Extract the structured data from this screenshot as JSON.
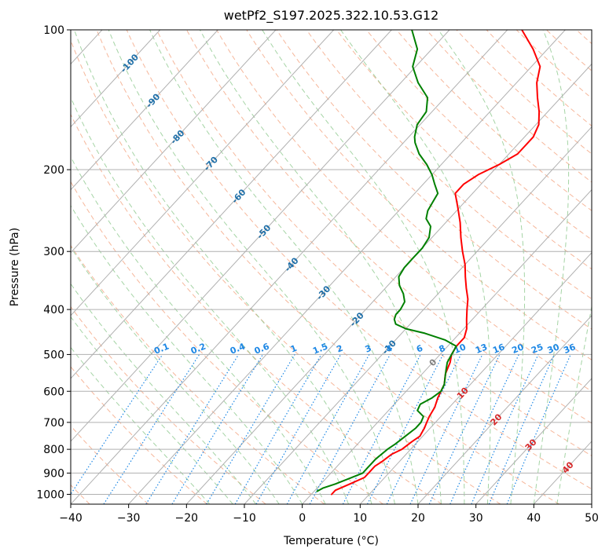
{
  "chart_data": {
    "type": "line",
    "title": "wetPf2_S197.2025.322.10.53.G12",
    "xlabel": "Temperature (°C)",
    "ylabel": "Pressure (hPa)",
    "xlim": [
      -40,
      50
    ],
    "ylim": [
      1050,
      100
    ],
    "y_scale": "log",
    "grid": true,
    "x_ticks": [
      "−40",
      "−30",
      "−20",
      "−10",
      "0",
      "10",
      "20",
      "30",
      "40",
      "50"
    ],
    "x_tick_values": [
      -40,
      -30,
      -20,
      -10,
      0,
      10,
      20,
      30,
      40,
      50
    ],
    "y_ticks": [
      "100",
      "200",
      "300",
      "400",
      "500",
      "600",
      "700",
      "800",
      "900",
      "1000"
    ],
    "y_tick_values": [
      100,
      200,
      300,
      400,
      500,
      600,
      700,
      800,
      900,
      1000
    ],
    "skew_x_per_y": 0.92,
    "series": [
      {
        "color": "#ff0000",
        "points": [
          [
            1000,
            3.5
          ],
          [
            980,
            3.5
          ],
          [
            950,
            5
          ],
          [
            920,
            6.5
          ],
          [
            900,
            6.5
          ],
          [
            870,
            6.5
          ],
          [
            850,
            7
          ],
          [
            820,
            7.5
          ],
          [
            800,
            8.5
          ],
          [
            770,
            9
          ],
          [
            750,
            9.5
          ],
          [
            720,
            9
          ],
          [
            700,
            8.5
          ],
          [
            680,
            8
          ],
          [
            650,
            7.5
          ],
          [
            620,
            6.5
          ],
          [
            600,
            6
          ],
          [
            580,
            5.5
          ],
          [
            550,
            4
          ],
          [
            520,
            3
          ],
          [
            500,
            2
          ],
          [
            480,
            1.5
          ],
          [
            460,
            1.5
          ],
          [
            440,
            0.5
          ],
          [
            420,
            -1
          ],
          [
            400,
            -2.5
          ],
          [
            380,
            -4
          ],
          [
            360,
            -6
          ],
          [
            340,
            -8
          ],
          [
            320,
            -10
          ],
          [
            300,
            -12.5
          ],
          [
            280,
            -15
          ],
          [
            260,
            -17.5
          ],
          [
            240,
            -20.5
          ],
          [
            225,
            -23
          ],
          [
            215,
            -23
          ],
          [
            205,
            -22
          ],
          [
            195,
            -20
          ],
          [
            185,
            -18.5
          ],
          [
            170,
            -18.5
          ],
          [
            160,
            -19.5
          ],
          [
            150,
            -21.5
          ],
          [
            140,
            -24
          ],
          [
            130,
            -26.5
          ],
          [
            120,
            -28.5
          ],
          [
            110,
            -32.5
          ],
          [
            100,
            -37.5
          ]
        ]
      },
      {
        "color": "#008000",
        "points": [
          [
            985,
            0.5
          ],
          [
            970,
            1
          ],
          [
            950,
            2.5
          ],
          [
            925,
            4
          ],
          [
            900,
            5.5
          ],
          [
            880,
            5.5
          ],
          [
            860,
            5.5
          ],
          [
            840,
            5.5
          ],
          [
            800,
            6
          ],
          [
            780,
            6.5
          ],
          [
            750,
            7
          ],
          [
            720,
            7.5
          ],
          [
            700,
            7.5
          ],
          [
            680,
            7
          ],
          [
            660,
            5
          ],
          [
            640,
            4.5
          ],
          [
            620,
            5.5
          ],
          [
            600,
            6
          ],
          [
            580,
            5.5
          ],
          [
            560,
            4.5
          ],
          [
            540,
            3.5
          ],
          [
            520,
            2.5
          ],
          [
            500,
            2
          ],
          [
            480,
            1.5
          ],
          [
            465,
            -1.5
          ],
          [
            450,
            -6
          ],
          [
            440,
            -10
          ],
          [
            430,
            -12.5
          ],
          [
            420,
            -13.5
          ],
          [
            410,
            -14
          ],
          [
            400,
            -14
          ],
          [
            385,
            -14.5
          ],
          [
            370,
            -16
          ],
          [
            355,
            -18
          ],
          [
            340,
            -19.5
          ],
          [
            325,
            -20
          ],
          [
            310,
            -20
          ],
          [
            295,
            -20
          ],
          [
            280,
            -20.5
          ],
          [
            265,
            -22
          ],
          [
            255,
            -24
          ],
          [
            245,
            -25
          ],
          [
            235,
            -25.5
          ],
          [
            225,
            -26
          ],
          [
            215,
            -28
          ],
          [
            205,
            -30
          ],
          [
            195,
            -32.5
          ],
          [
            185,
            -35.5
          ],
          [
            175,
            -38
          ],
          [
            170,
            -39
          ],
          [
            160,
            -40.5
          ],
          [
            150,
            -41
          ],
          [
            140,
            -43
          ],
          [
            130,
            -47
          ],
          [
            120,
            -50.5
          ],
          [
            110,
            -52.5
          ],
          [
            100,
            -56.5
          ]
        ]
      }
    ],
    "isotherm_labels": [
      "-100",
      "-90",
      "-80",
      "-70",
      "-60",
      "-50",
      "-40",
      "-30",
      "-20",
      "-10",
      "0",
      "10",
      "20",
      "30",
      "40"
    ],
    "isotherm_label_values": [
      -100,
      -90,
      -80,
      -70,
      -60,
      -50,
      -40,
      -30,
      -20,
      -10,
      0,
      10,
      20,
      30,
      40
    ],
    "isotherm_label_pressures": [
      118,
      142,
      170,
      194,
      228,
      272,
      320,
      368,
      420,
      482,
      520,
      605,
      690,
      782,
      875
    ],
    "mixing_ratio_labels": [
      "0.1",
      "0.2",
      "0.4",
      "0.6",
      "1",
      "1.5",
      "2",
      "3",
      "4",
      "6",
      "8",
      "10",
      "13",
      "16",
      "20",
      "25",
      "30",
      "36"
    ],
    "mixing_ratio_values": [
      0.1,
      0.2,
      0.4,
      0.6,
      1,
      1.5,
      2,
      3,
      4,
      6,
      8,
      10,
      13,
      16,
      20,
      25,
      30,
      36
    ],
    "mixing_ratio_top_pressure": 500,
    "colors": {
      "temperature": "#ff0000",
      "dewpoint": "#008000",
      "grid": "#b0b0b0",
      "dry_adiabat": "#f4a582",
      "moist_adiabat": "#8fc98f",
      "mixing_ratio": "#1e88e5",
      "isotherm_label_cold": "#1f6fa8",
      "isotherm_label_warm": "#d62728",
      "isotherm_label_zero": "#808080"
    }
  }
}
